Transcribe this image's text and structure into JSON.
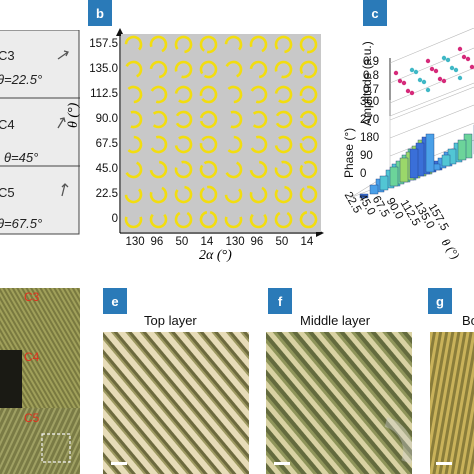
{
  "panels": {
    "a": {
      "rows": [
        {
          "label": "C3",
          "theta": "θ=22.5°"
        },
        {
          "label": "C4",
          "theta": "θ=45°"
        },
        {
          "label": "C5",
          "theta": "θ=67.5°"
        }
      ]
    },
    "b": {
      "badge": "b",
      "ylabel": "θ (°)",
      "xlabel": "2α (°)",
      "y_ticks": [
        "157.5",
        "135.0",
        "112.5",
        "90.0",
        "67.5",
        "45.0",
        "22.5",
        "0"
      ],
      "x_ticks": [
        "130",
        "96",
        "50",
        "14",
        "130",
        "96",
        "50",
        "14"
      ]
    },
    "c": {
      "badge": "c",
      "amplitude_label": "Amplitude (a.u.)",
      "phase_label": "Phase (°)",
      "amp_ticks": [
        "0.9",
        "0.8",
        "0.7"
      ],
      "phase_ticks": [
        "360",
        "270",
        "180",
        "90",
        "0"
      ],
      "theta_ticks": [
        "22.5",
        "45.0",
        "67.5",
        "90.0",
        "112.5",
        "135.0",
        "157.5"
      ],
      "theta_axis_label": "θ (°)"
    },
    "d": {
      "labels": [
        "C3",
        "C4",
        "C5"
      ]
    },
    "e": {
      "badge": "e",
      "title": "Top layer"
    },
    "f": {
      "badge": "f",
      "title": "Middle layer"
    },
    "g": {
      "badge": "g",
      "title": "Bo"
    }
  },
  "colors": {
    "badge": "#2a7ab8",
    "panel_b_bg": "#c8c8c8",
    "ring": "#f2dd10",
    "label_red": "#e0301e"
  }
}
